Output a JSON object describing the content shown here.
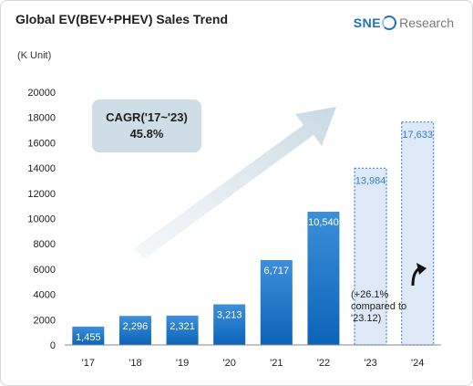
{
  "title": "Global EV(BEV+PHEV) Sales Trend",
  "logo": {
    "brand": "SNE",
    "rest": "Research"
  },
  "chart_data": {
    "type": "bar",
    "title": "Global EV(BEV+PHEV) Sales Trend",
    "unit": "(K Unit)",
    "categories": [
      "'17",
      "'18",
      "'19",
      "'20",
      "'21",
      "'22",
      "'23",
      "'24"
    ],
    "values": [
      1455,
      2296,
      2321,
      3213,
      6717,
      10540,
      13984,
      17633
    ],
    "labels": [
      "1,455",
      "2,296",
      "2,321",
      "3,213",
      "6,717",
      "10,540",
      "13,984",
      "17,633"
    ],
    "forecast": [
      false,
      false,
      false,
      false,
      false,
      false,
      true,
      true
    ],
    "ylim": [
      0,
      20000
    ],
    "yticks": [
      0,
      2000,
      4000,
      6000,
      8000,
      10000,
      12000,
      14000,
      16000,
      18000,
      20000
    ],
    "grid": false,
    "cagr": {
      "line1": "CAGR('17~'23)",
      "line2": "45.8%"
    },
    "annotation": "(+26.1% compared to '23.12)"
  },
  "colors": {
    "bar_top": "#3d8fd9",
    "bar_bottom": "#0b63b8",
    "forecast_fill": "#dfe8f6",
    "forecast_border": "#3f86cf",
    "forecast_label": "#2f7fd0",
    "axis": "#888888"
  }
}
